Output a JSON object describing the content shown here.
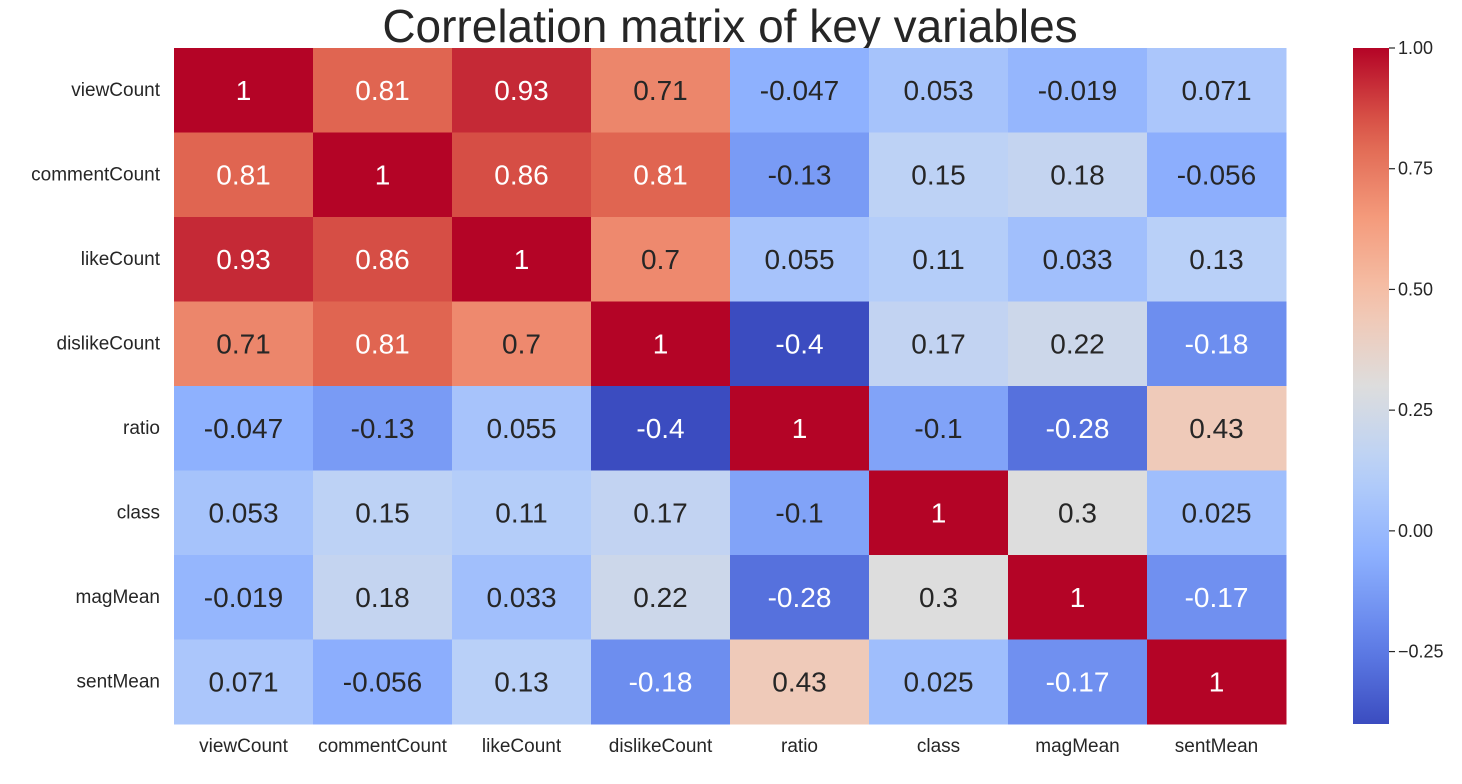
{
  "chart_data": {
    "type": "heatmap",
    "title": "Correlation matrix of key variables",
    "xlabel": "",
    "ylabel": "",
    "rows": [
      "viewCount",
      "commentCount",
      "likeCount",
      "dislikeCount",
      "ratio",
      "class",
      "magMean",
      "sentMean"
    ],
    "cols": [
      "viewCount",
      "commentCount",
      "likeCount",
      "dislikeCount",
      "ratio",
      "class",
      "magMean",
      "sentMean"
    ],
    "values": [
      [
        1,
        0.81,
        0.93,
        0.71,
        -0.047,
        0.053,
        -0.019,
        0.071
      ],
      [
        0.81,
        1,
        0.86,
        0.81,
        -0.13,
        0.15,
        0.18,
        -0.056
      ],
      [
        0.93,
        0.86,
        1,
        0.7,
        0.055,
        0.11,
        0.033,
        0.13
      ],
      [
        0.71,
        0.81,
        0.7,
        1,
        -0.4,
        0.17,
        0.22,
        -0.18
      ],
      [
        -0.047,
        -0.13,
        0.055,
        -0.4,
        1,
        -0.1,
        -0.28,
        0.43
      ],
      [
        0.053,
        0.15,
        0.11,
        0.17,
        -0.1,
        1,
        0.3,
        0.025
      ],
      [
        -0.019,
        0.18,
        0.033,
        0.22,
        -0.28,
        0.3,
        1,
        -0.17
      ],
      [
        0.071,
        -0.056,
        0.13,
        -0.18,
        0.43,
        0.025,
        -0.17,
        1
      ]
    ],
    "colormap": "coolwarm",
    "vmin": -0.4,
    "vmax": 1.0,
    "colorbar": {
      "ticks": [
        -0.25,
        0.0,
        0.25,
        0.5,
        0.75,
        1.0
      ],
      "tick_labels": [
        "−0.25",
        "0.00",
        "0.25",
        "0.50",
        "0.75",
        "1.00"
      ],
      "placement": "right"
    },
    "annotations": true,
    "grid": false
  }
}
